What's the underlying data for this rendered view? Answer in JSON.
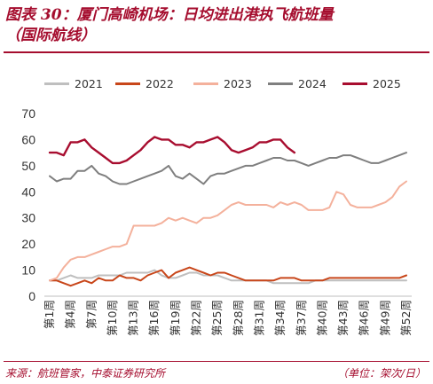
{
  "header": {
    "title_line1": "图表 30：厦门高崎机场：日均进出港执飞航班量",
    "title_line2": "（国际航线）"
  },
  "footer": {
    "source": "来源：航班管家，中泰证券研究所",
    "unit": "（单位：架次/日）"
  },
  "chart_data": {
    "type": "line",
    "title": "",
    "xlabel": "",
    "ylabel": "",
    "ylim": [
      0,
      70
    ],
    "yticks": [
      0,
      10,
      20,
      30,
      40,
      50,
      60,
      70
    ],
    "grid": false,
    "legend_position": "top",
    "x_tick_labels": [
      "第1周",
      "第4周",
      "第7周",
      "第10周",
      "第13周",
      "第16周",
      "第19周",
      "第22周",
      "第25周",
      "第28周",
      "第31周",
      "第34周",
      "第37周",
      "第40周",
      "第43周",
      "第46周",
      "第49周",
      "第52周"
    ],
    "x_tick_weeks": [
      1,
      4,
      7,
      10,
      13,
      16,
      19,
      22,
      25,
      28,
      31,
      34,
      37,
      40,
      43,
      46,
      49,
      52
    ],
    "series": [
      {
        "name": "2021",
        "color": "#bfbfbf",
        "start_week": 1,
        "values": [
          6,
          6,
          7,
          8,
          7,
          7,
          7,
          8,
          8,
          8,
          8,
          9,
          9,
          9,
          9,
          10,
          8,
          7,
          7,
          8,
          9,
          9,
          8,
          8,
          8,
          7,
          6,
          6,
          6,
          6,
          6,
          6,
          5,
          5,
          5,
          5,
          5,
          5,
          6,
          6,
          6,
          6,
          6,
          6,
          6,
          6,
          6,
          6,
          6,
          6,
          6,
          6
        ]
      },
      {
        "name": "2022",
        "color": "#c8461a",
        "start_week": 1,
        "values": [
          6,
          6,
          5,
          4,
          5,
          6,
          5,
          7,
          6,
          6,
          8,
          7,
          7,
          6,
          8,
          9,
          10,
          7,
          9,
          10,
          11,
          10,
          9,
          8,
          9,
          9,
          8,
          7,
          6,
          6,
          6,
          6,
          6,
          7,
          7,
          7,
          6,
          6,
          6,
          6,
          7,
          7,
          7,
          7,
          7,
          7,
          7,
          7,
          7,
          7,
          7,
          8
        ]
      },
      {
        "name": "2023",
        "color": "#f4b19c",
        "start_week": 1,
        "values": [
          6,
          7,
          11,
          14,
          15,
          15,
          16,
          17,
          18,
          19,
          19,
          20,
          27,
          27,
          27,
          27,
          28,
          30,
          29,
          30,
          29,
          28,
          30,
          30,
          31,
          33,
          35,
          36,
          35,
          35,
          35,
          35,
          34,
          36,
          35,
          36,
          35,
          33,
          33,
          33,
          34,
          40,
          39,
          35,
          34,
          34,
          34,
          35,
          36,
          38,
          42,
          44
        ]
      },
      {
        "name": "2024",
        "color": "#7f7f7f",
        "start_week": 1,
        "values": [
          46,
          44,
          45,
          45,
          48,
          48,
          50,
          47,
          46,
          44,
          43,
          43,
          44,
          45,
          46,
          47,
          48,
          50,
          46,
          45,
          47,
          45,
          43,
          46,
          47,
          47,
          48,
          49,
          50,
          50,
          51,
          52,
          53,
          53,
          52,
          52,
          51,
          50,
          51,
          52,
          53,
          53,
          54,
          54,
          53,
          52,
          51,
          51,
          52,
          53,
          54,
          55
        ]
      },
      {
        "name": "2025",
        "color": "#a80d2f",
        "start_week": 1,
        "values": [
          55,
          55,
          54,
          59,
          59,
          60,
          57,
          55,
          53,
          51,
          51,
          52,
          54,
          56,
          59,
          61,
          60,
          60,
          58,
          58,
          57,
          59,
          59,
          60,
          61,
          59,
          56,
          55,
          56,
          57,
          59,
          59,
          60,
          60,
          57,
          55
        ]
      }
    ]
  }
}
